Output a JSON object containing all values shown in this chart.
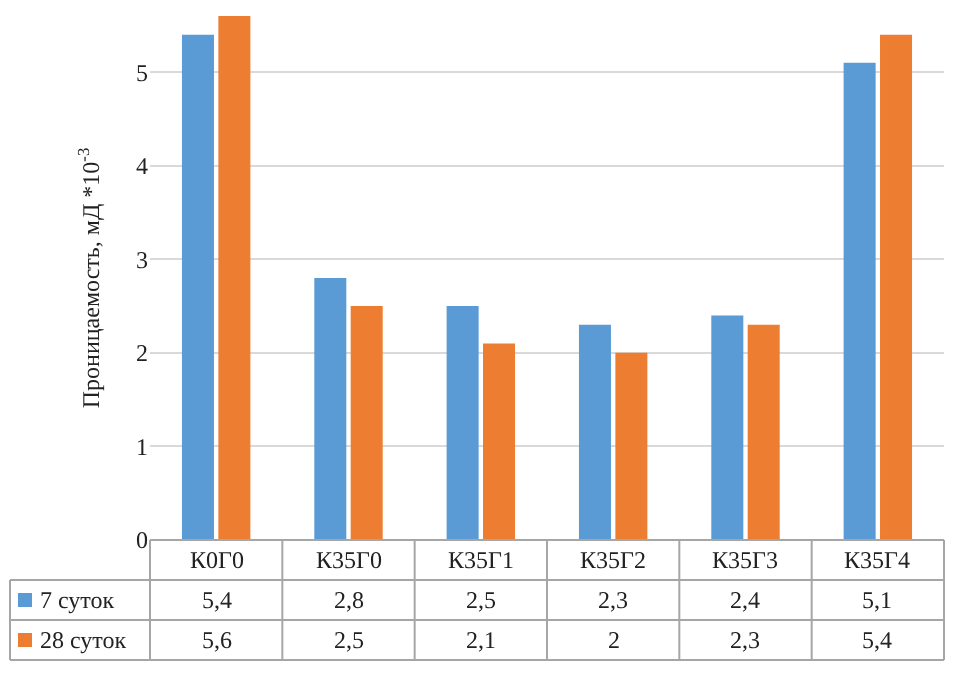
{
  "chart_data": {
    "type": "bar",
    "ylabel": "Проницаемость, мД *10$^{-3}$",
    "categories": [
      "К0Г0",
      "К35Г0",
      "К35Г1",
      "К35Г2",
      "К35Г3",
      "К35Г4"
    ],
    "series": [
      {
        "name": "7 суток",
        "color": "#5b9bd5",
        "values": [
          5.4,
          2.8,
          2.5,
          2.3,
          2.4,
          5.1
        ],
        "value_labels": [
          "5,4",
          "2,8",
          "2,5",
          "2,3",
          "2,4",
          "5,1"
        ]
      },
      {
        "name": "28 суток",
        "color": "#ed7d31",
        "values": [
          5.6,
          2.5,
          2.1,
          2,
          2.3,
          5.4
        ],
        "value_labels": [
          "5,6",
          "2,5",
          "2,1",
          "2",
          "2,3",
          "5,4"
        ]
      }
    ],
    "ylim": [
      0,
      5.6
    ],
    "yticks": [
      0,
      1,
      2,
      3,
      4,
      5
    ],
    "grid": "y",
    "legend": "bottom"
  }
}
